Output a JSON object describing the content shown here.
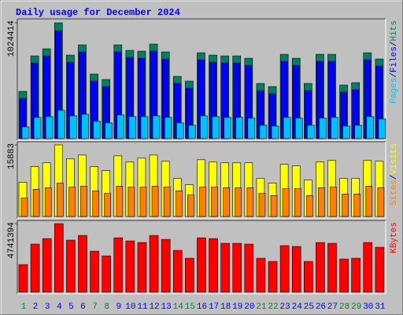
{
  "chart_data": {
    "type": "bar",
    "title": "Daily usage for December 2024",
    "separator": "/",
    "categories": [
      "1",
      "2",
      "3",
      "4",
      "5",
      "6",
      "7",
      "8",
      "9",
      "10",
      "11",
      "12",
      "13",
      "14",
      "15",
      "16",
      "17",
      "18",
      "19",
      "20",
      "21",
      "22",
      "23",
      "24",
      "25",
      "26",
      "27",
      "28",
      "29",
      "30",
      "31"
    ],
    "category_colors": [
      "#008040",
      "#0000ff",
      "#0000ff",
      "#0000ff",
      "#0000ff",
      "#0000ff",
      "#008040",
      "#008040",
      "#0000ff",
      "#0000ff",
      "#0000ff",
      "#0000ff",
      "#0000ff",
      "#008040",
      "#008040",
      "#0000ff",
      "#0000ff",
      "#0000ff",
      "#0000ff",
      "#0000ff",
      "#008040",
      "#008040",
      "#0000ff",
      "#0000ff",
      "#0000ff",
      "#0000ff",
      "#0000ff",
      "#008040",
      "#008040",
      "#0000ff",
      "#0000ff"
    ],
    "panels": [
      {
        "ylim": [
          0,
          1024414
        ],
        "yticks": [
          1024414
        ],
        "series": [
          {
            "name": "Hits",
            "color": "#008060",
            "values": [
              418000,
              731700,
              794500,
              1024414,
              738700,
              829300,
              571400,
              522700,
              829300,
              780500,
              773600,
              836300,
              766600,
              550500,
              508700,
              759600,
              738700,
              731700,
              731700,
              710800,
              487800,
              460000,
              745700,
              710800,
              487800,
              745700,
              745700,
              473900,
              494800,
              759600,
              703900
            ]
          },
          {
            "name": "Files",
            "color": "#0000ff",
            "values": [
              355300,
              668900,
              731700,
              954700,
              675900,
              766600,
              508700,
              460000,
              766600,
              717700,
              710800,
              773600,
              703900,
              487800,
              446000,
              696900,
              675900,
              668900,
              668900,
              648000,
              425100,
              397200,
              682900,
              648000,
              425100,
              682900,
              682900,
              411100,
              432000,
              696900,
              641100
            ]
          },
          {
            "name": "Pages",
            "color": "#00c0ff",
            "values": [
              104500,
              188200,
              195100,
              250900,
              202100,
              216000,
              153300,
              139400,
              209100,
              195100,
              195100,
              202100,
              188200,
              139400,
              118500,
              202100,
              195100,
              188200,
              188200,
              181200,
              118500,
              111500,
              188200,
              181200,
              118500,
              181200,
              188200,
              111500,
              118500,
              195100,
              174200
            ]
          }
        ]
      },
      {
        "ylim": [
          0,
          15883
        ],
        "yticks": [
          15883
        ],
        "series": [
          {
            "name": "Visits",
            "color": "#ffff00",
            "values": [
              7595,
              11047,
              11910,
              15883,
              12773,
              13636,
              11047,
              10184,
              13464,
              12083,
              12946,
              13636,
              12255,
              8458,
              7077,
              12601,
              12083,
              11910,
              11910,
              11910,
              8458,
              7422,
              11565,
              11220,
              8113,
              12083,
              12428,
              8458,
              8458,
              12428,
              12255
            ]
          },
          {
            "name": "Sites",
            "color": "#ff8000",
            "values": [
              4142,
              6041,
              6386,
              7422,
              6559,
              6731,
              5696,
              5178,
              6731,
              6559,
              6559,
              6731,
              6559,
              5696,
              4833,
              6559,
              6559,
              6386,
              6386,
              6386,
              5178,
              4660,
              6214,
              6214,
              4660,
              6386,
              6559,
              5005,
              5005,
              6731,
              6386
            ]
          }
        ]
      },
      {
        "ylim": [
          0,
          4741394
        ],
        "yticks": [
          4741394
        ],
        "series": [
          {
            "name": "KBytes",
            "color": "#ff0000",
            "values": [
              1907500,
              3324400,
              3705900,
              4741394,
              3596900,
              3923900,
              2834000,
              2507000,
              3760400,
              3542400,
              3433400,
              3923900,
              3651400,
              2888400,
              2343500,
              3760400,
              3705900,
              3378900,
              3378900,
              3324400,
              2343500,
              2125500,
              3215400,
              3160900,
              2125500,
              3433400,
              3378900,
              2289000,
              2343500,
              3433400,
              3106400
            ]
          }
        ]
      }
    ]
  }
}
